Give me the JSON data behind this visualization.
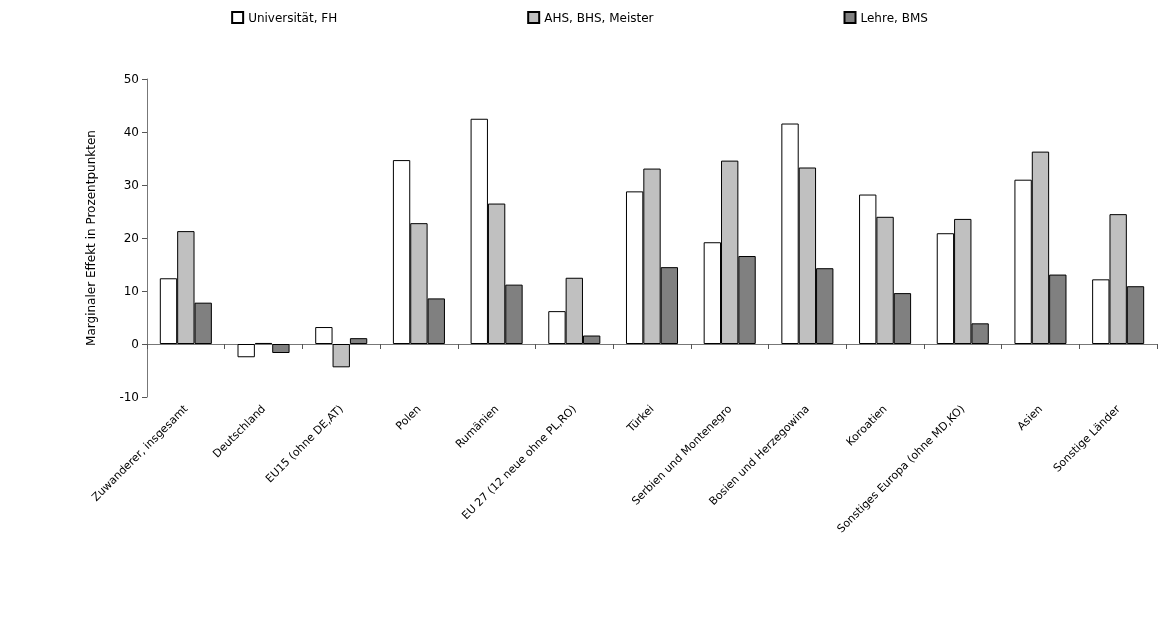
{
  "chart_data": {
    "type": "bar",
    "ylabel": "Marginaler Effekt in Prozentpunkten",
    "categories": [
      "Zuwanderer, insgesamt",
      "Deutschland",
      "EU15 (ohne DE,AT)",
      "Polen",
      "Rumänien",
      "EU 27 (12 neue ohne PL,RO)",
      "Türkei",
      "Serbien und Montenegro",
      "Bosien und Herzegowina",
      "Koroatien",
      "Sonstiges Europa (ohne MD,KO)",
      "Asien",
      "Sonstige Länder"
    ],
    "series": [
      {
        "name": "Universität, FH",
        "color": "#ffffff",
        "values": [
          12.4,
          -2.5,
          3.2,
          34.7,
          42.5,
          6.2,
          28.8,
          19.2,
          41.6,
          28.2,
          20.9,
          31.0,
          12.2
        ]
      },
      {
        "name": "AHS, BHS, Meister",
        "color": "#c0c0c0",
        "values": [
          21.3,
          0.2,
          -4.4,
          22.8,
          26.5,
          12.5,
          33.1,
          34.6,
          33.3,
          24.0,
          23.6,
          36.3,
          24.5
        ]
      },
      {
        "name": "Lehre, BMS",
        "color": "#808080",
        "values": [
          7.8,
          -1.7,
          1.1,
          8.6,
          11.2,
          1.6,
          14.5,
          16.6,
          14.3,
          9.6,
          3.9,
          13.1,
          10.9
        ]
      }
    ],
    "ylim": [
      -10,
      50
    ],
    "yticks": [
      -10,
      0,
      10,
      20,
      30,
      40,
      50
    ],
    "legend": "top"
  }
}
